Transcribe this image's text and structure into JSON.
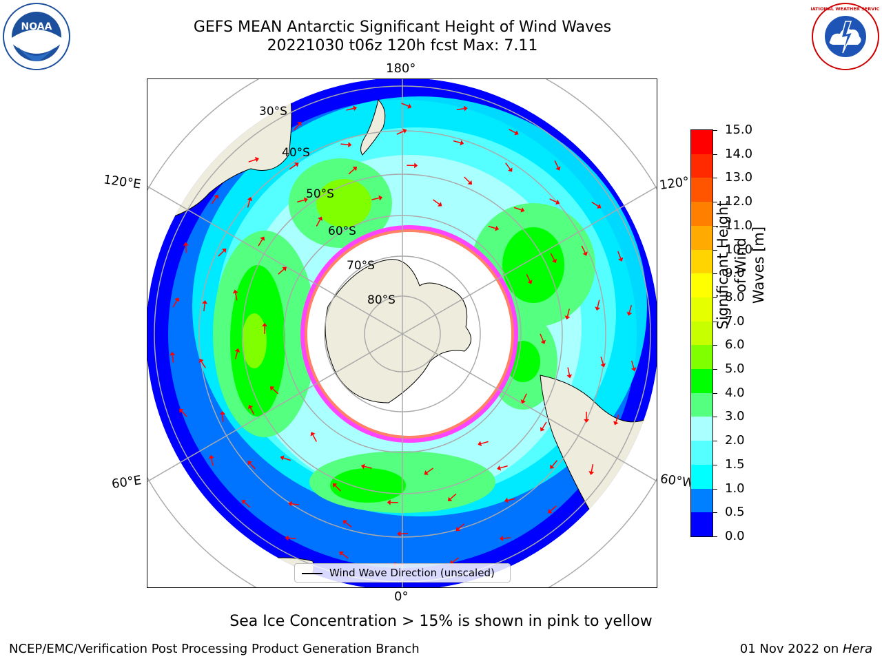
{
  "title": {
    "line1": "GEFS MEAN Antarctic Significant Height of Wind Waves",
    "line2": "20221030 t06z 120h fcst   Max: 7.11"
  },
  "map": {
    "meridian_labels": {
      "top": "180°",
      "bottom": "0°",
      "left_upper": "120°E",
      "left_lower": "60°E",
      "right_upper": "120°",
      "right_lower": "60°W"
    },
    "parallel_labels": [
      "30°S",
      "40°S",
      "50°S",
      "60°S",
      "70°S",
      "80°S"
    ],
    "legend_label": "Wind Wave Direction (unscaled)",
    "colors": {
      "land": "#eeecdc",
      "ocean_low": "#0000ff",
      "ice_edge": "#ff44ff",
      "arrow": "#ff0000",
      "grid": "#aaaaaa"
    }
  },
  "colorbar": {
    "title_line1": "Significant Height of Wind",
    "title_line2": "Waves [m]",
    "ticks": [
      "15.0",
      "14.0",
      "13.0",
      "12.0",
      "11.0",
      "10.0",
      "9.0",
      "8.0",
      "7.0",
      "6.0",
      "5.0",
      "4.0",
      "3.0",
      "2.0",
      "1.5",
      "1.0",
      "0.5",
      "0.0"
    ],
    "colors": [
      "#ff0000",
      "#ff2a00",
      "#ff5500",
      "#ff7f00",
      "#ffaa00",
      "#ffd400",
      "#ffff00",
      "#e5ff00",
      "#c8ff00",
      "#7fff00",
      "#00ff00",
      "#55ff7f",
      "#aaffff",
      "#55ffff",
      "#00ffff",
      "#0080ff",
      "#0000ff"
    ]
  },
  "logos": {
    "left": "NOAA",
    "right": "NATIONAL WEATHER SERVICE"
  },
  "caption": "Sea Ice Concentration > 15% is shown in pink to yellow",
  "footer": {
    "left": "NCEP/EMC/Verification Post Processing Product Generation Branch",
    "right_prefix": "01 Nov 2022 on ",
    "right_host": "Hera"
  }
}
